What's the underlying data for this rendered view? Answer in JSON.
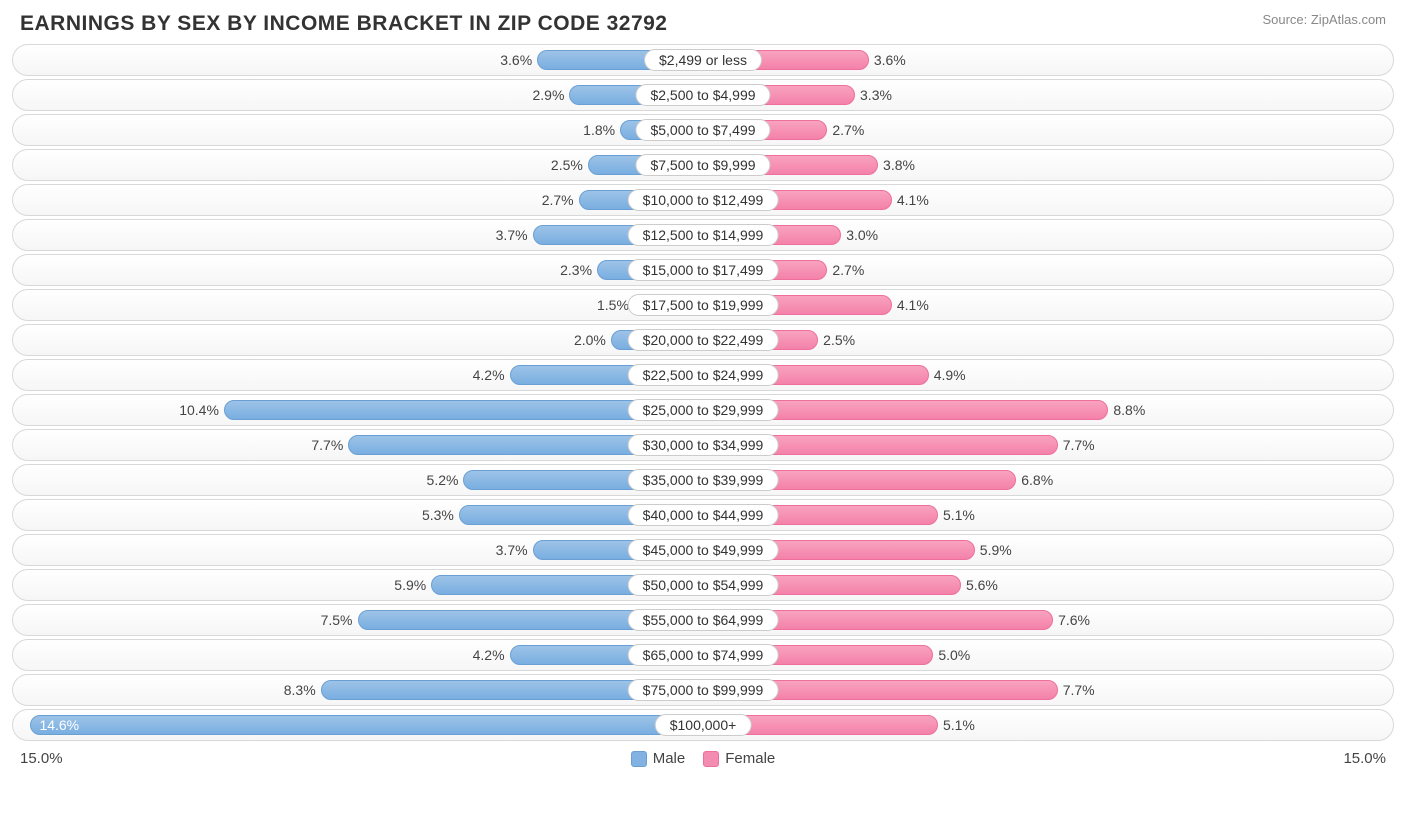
{
  "title": "EARNINGS BY SEX BY INCOME BRACKET IN ZIP CODE 32792",
  "source": "Source: ZipAtlas.com",
  "axis_max_label": "15.0%",
  "axis_max_value": 15.0,
  "legend": {
    "male": "Male",
    "female": "Female"
  },
  "colors": {
    "male_bar_top": "#9dc3e8",
    "male_bar_bottom": "#79aee0",
    "male_border": "#6a9fd4",
    "female_bar_top": "#f8a3c0",
    "female_bar_bottom": "#f481a9",
    "female_border": "#ee6f9c",
    "row_border": "#d8d8d8",
    "row_bg_top": "#ffffff",
    "row_bg_bottom": "#f6f6f6",
    "text": "#444444",
    "title_text": "#333333",
    "source_text": "#888888",
    "label_bg": "#ffffff",
    "label_border": "#cccccc"
  },
  "rows": [
    {
      "category": "$2,499 or less",
      "male": 3.6,
      "female": 3.6
    },
    {
      "category": "$2,500 to $4,999",
      "male": 2.9,
      "female": 3.3
    },
    {
      "category": "$5,000 to $7,499",
      "male": 1.8,
      "female": 2.7
    },
    {
      "category": "$7,500 to $9,999",
      "male": 2.5,
      "female": 3.8
    },
    {
      "category": "$10,000 to $12,499",
      "male": 2.7,
      "female": 4.1
    },
    {
      "category": "$12,500 to $14,999",
      "male": 3.7,
      "female": 3.0
    },
    {
      "category": "$15,000 to $17,499",
      "male": 2.3,
      "female": 2.7
    },
    {
      "category": "$17,500 to $19,999",
      "male": 1.5,
      "female": 4.1
    },
    {
      "category": "$20,000 to $22,499",
      "male": 2.0,
      "female": 2.5
    },
    {
      "category": "$22,500 to $24,999",
      "male": 4.2,
      "female": 4.9
    },
    {
      "category": "$25,000 to $29,999",
      "male": 10.4,
      "female": 8.8
    },
    {
      "category": "$30,000 to $34,999",
      "male": 7.7,
      "female": 7.7
    },
    {
      "category": "$35,000 to $39,999",
      "male": 5.2,
      "female": 6.8
    },
    {
      "category": "$40,000 to $44,999",
      "male": 5.3,
      "female": 5.1
    },
    {
      "category": "$45,000 to $49,999",
      "male": 3.7,
      "female": 5.9
    },
    {
      "category": "$50,000 to $54,999",
      "male": 5.9,
      "female": 5.6
    },
    {
      "category": "$55,000 to $64,999",
      "male": 7.5,
      "female": 7.6
    },
    {
      "category": "$65,000 to $74,999",
      "male": 4.2,
      "female": 5.0
    },
    {
      "category": "$75,000 to $99,999",
      "male": 8.3,
      "female": 7.7
    },
    {
      "category": "$100,000+",
      "male": 14.6,
      "female": 5.1
    }
  ]
}
